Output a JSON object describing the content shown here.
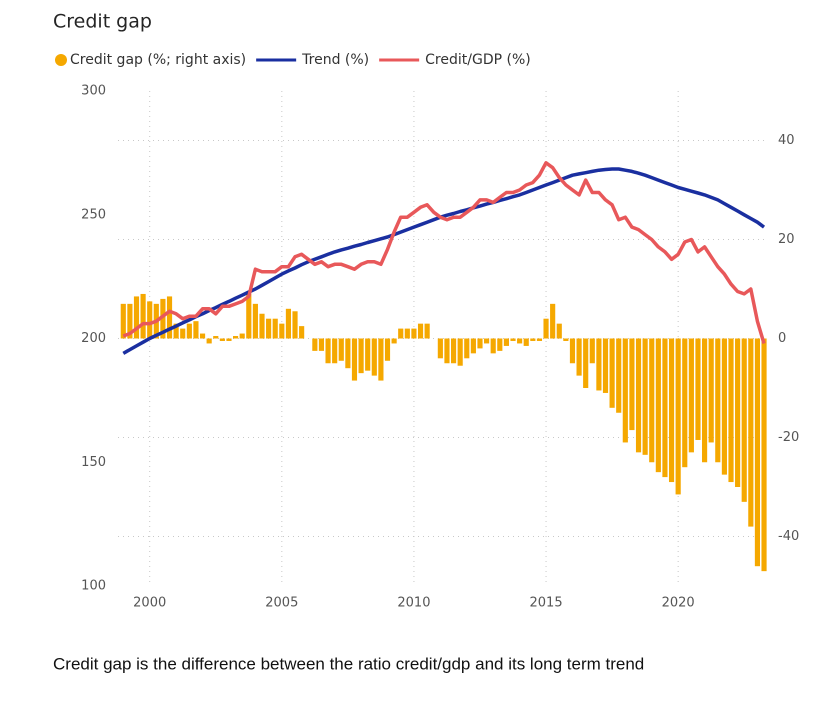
{
  "chart_data": {
    "type": "combo",
    "title": "Credit gap",
    "caption": "Credit gap is the difference between the ratio credit/gdp and its long term trend",
    "x": [
      1999,
      1999.25,
      1999.5,
      1999.75,
      2000,
      2000.25,
      2000.5,
      2000.75,
      2001,
      2001.25,
      2001.5,
      2001.75,
      2002,
      2002.25,
      2002.5,
      2002.75,
      2003,
      2003.25,
      2003.5,
      2003.75,
      2004,
      2004.25,
      2004.5,
      2004.75,
      2005,
      2005.25,
      2005.5,
      2005.75,
      2006,
      2006.25,
      2006.5,
      2006.75,
      2007,
      2007.25,
      2007.5,
      2007.75,
      2008,
      2008.25,
      2008.5,
      2008.75,
      2009,
      2009.25,
      2009.5,
      2009.75,
      2010,
      2010.25,
      2010.5,
      2010.75,
      2011,
      2011.25,
      2011.5,
      2011.75,
      2012,
      2012.25,
      2012.5,
      2012.75,
      2013,
      2013.25,
      2013.5,
      2013.75,
      2014,
      2014.25,
      2014.5,
      2014.75,
      2015,
      2015.25,
      2015.5,
      2015.75,
      2016,
      2016.25,
      2016.5,
      2016.75,
      2017,
      2017.25,
      2017.5,
      2017.75,
      2018,
      2018.25,
      2018.5,
      2018.75,
      2019,
      2019.25,
      2019.5,
      2019.75,
      2020,
      2020.25,
      2020.5,
      2020.75,
      2021,
      2021.25,
      2021.5,
      2021.75,
      2022,
      2022.25,
      2022.5,
      2022.75,
      2023,
      2023.25
    ],
    "series": [
      {
        "name": "Credit gap (%; right axis)",
        "type": "bar",
        "axis": "y2",
        "color": "#f5a800",
        "values": [
          7,
          7,
          8.5,
          9,
          7.5,
          7,
          8,
          8.5,
          3,
          2,
          3,
          3.5,
          1,
          -1,
          0.5,
          -0.5,
          -0.5,
          0.5,
          1,
          9,
          7,
          5,
          4,
          4,
          3,
          6,
          5.5,
          2.5,
          0,
          -2.5,
          -2.5,
          -5,
          -5,
          -4.5,
          -6,
          -8.5,
          -7,
          -6.5,
          -7.5,
          -8.5,
          -4.5,
          -1,
          2,
          2,
          2,
          3,
          3,
          0,
          -4,
          -5,
          -5,
          -5.5,
          -4,
          -3,
          -2,
          -1,
          -3,
          -2.5,
          -1.5,
          -0.5,
          -1,
          -1.5,
          -0.5,
          -0.5,
          4,
          7,
          3,
          -0.5,
          -5,
          -7.5,
          -10,
          -5,
          -10.5,
          -11,
          -14,
          -15,
          -21,
          -18.5,
          -23,
          -23.5,
          -25,
          -27,
          -28,
          -29,
          -31.5,
          -26,
          -23,
          -20.5,
          -25,
          -21,
          -25,
          -27.5,
          -29,
          -30,
          -33,
          -38,
          -46,
          -47
        ]
      },
      {
        "name": "Trend (%)",
        "type": "line",
        "color": "#1a2fa0",
        "values": [
          194,
          195.5,
          197,
          198.5,
          200,
          201.3,
          202.5,
          203.8,
          205,
          206.3,
          207.5,
          208.8,
          210,
          211.3,
          212.5,
          213.8,
          215,
          216.3,
          217.5,
          218.8,
          220,
          221.5,
          223,
          224.5,
          226,
          227.3,
          228.5,
          229.8,
          231,
          232,
          233,
          234,
          235,
          235.8,
          236.5,
          237.3,
          238,
          238.8,
          239.5,
          240.3,
          241,
          242,
          243,
          244,
          245,
          246,
          247,
          248,
          249,
          249.8,
          250.5,
          251.3,
          252,
          252.8,
          253.5,
          254.3,
          255,
          255.8,
          256.5,
          257.3,
          258,
          259,
          260,
          261,
          262,
          263,
          264,
          265,
          266,
          266.5,
          267,
          267.5,
          268,
          268.3,
          268.5,
          268.5,
          268,
          267.5,
          266.8,
          266,
          265,
          264,
          263,
          262,
          261,
          260.3,
          259.5,
          258.8,
          258,
          257,
          256,
          254.5,
          253,
          251.5,
          250,
          248.5,
          247,
          245
        ]
      },
      {
        "name": "Credit/GDP (%)",
        "type": "line",
        "color": "#e8585a",
        "values": [
          201,
          202,
          204,
          206,
          206,
          207,
          209,
          211,
          210,
          208,
          209,
          209,
          212,
          212,
          210,
          213,
          213,
          214,
          215,
          217,
          228,
          227,
          227,
          227,
          229,
          229,
          233,
          234,
          232,
          230,
          231,
          229,
          230,
          230,
          229,
          228,
          230,
          231,
          231,
          230,
          236,
          243,
          249,
          249,
          251,
          253,
          254,
          251,
          249,
          248,
          249,
          249,
          251,
          253,
          256,
          256,
          255,
          257,
          259,
          259,
          260,
          262,
          263,
          266,
          271,
          269,
          265,
          262,
          260,
          258,
          264,
          259,
          259,
          256,
          254,
          248,
          249,
          245,
          244,
          242,
          240,
          237,
          235,
          232,
          234,
          239,
          240,
          235,
          237,
          233,
          229,
          226,
          222,
          219,
          218,
          220,
          207,
          198
        ]
      }
    ],
    "xlim": [
      1998.8,
      2023.4
    ],
    "xticks": [
      2000,
      2005,
      2010,
      2015,
      2020
    ],
    "ylim": [
      100,
      300
    ],
    "yticks": [
      100,
      150,
      200,
      250,
      300
    ],
    "y2lim": [
      -50,
      50
    ],
    "y2ticks": [
      -40,
      -20,
      0,
      20,
      40
    ],
    "grid": true
  }
}
